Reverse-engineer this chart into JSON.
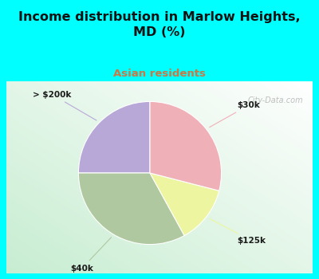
{
  "title": "Income distribution in Marlow Heights,\nMD (%)",
  "subtitle": "Asian residents",
  "title_color": "#111111",
  "subtitle_color": "#cc7744",
  "bg_top": "#00ffff",
  "slices": [
    {
      "label": "> $200k",
      "value": 25,
      "color": "#b8a8d8"
    },
    {
      "label": "$40k",
      "value": 33,
      "color": "#b0c8a0"
    },
    {
      "label": "$125k",
      "value": 13,
      "color": "#eef5a0"
    },
    {
      "label": "$30k",
      "value": 29,
      "color": "#f0b0b8"
    }
  ],
  "startangle": 90,
  "watermark": "City-Data.com"
}
